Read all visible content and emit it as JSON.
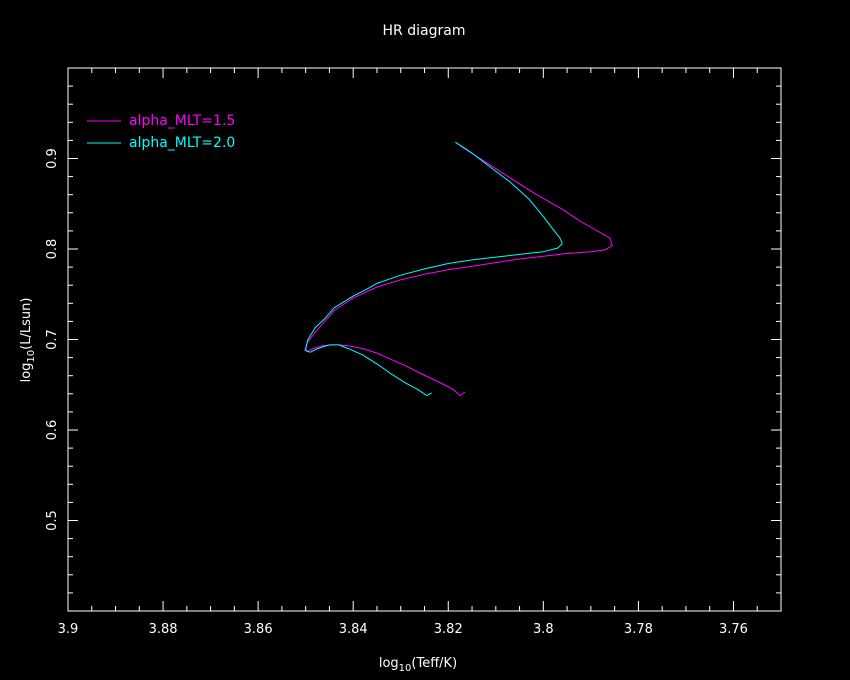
{
  "chart_data": {
    "type": "line",
    "title": "HR diagram",
    "xlabel": {
      "prefix": "log",
      "sub": "10",
      "suffix": "(Teff/K)"
    },
    "ylabel": {
      "prefix": "log",
      "sub": "10",
      "suffix": "(L/Lsun)"
    },
    "xlim": [
      3.9,
      3.75
    ],
    "ylim": [
      0.4,
      1.0
    ],
    "x_ticks": [
      3.9,
      3.88,
      3.86,
      3.84,
      3.82,
      3.8,
      3.78,
      3.76
    ],
    "x_tick_labels": [
      "3.9",
      "3.88",
      "3.86",
      "3.84",
      "3.82",
      "3.8",
      "3.78",
      "3.76"
    ],
    "y_ticks": [
      0.5,
      0.6,
      0.7,
      0.8,
      0.9
    ],
    "y_tick_labels": [
      "0.5",
      "0.6",
      "0.7",
      "0.8",
      "0.9"
    ],
    "grid": false,
    "legend_position": "top-left",
    "series": [
      {
        "name": "alpha_MLT=1.5",
        "color": "#ff00ff",
        "x": [
          3.8165,
          3.8175,
          3.819,
          3.822,
          3.826,
          3.829,
          3.832,
          3.835,
          3.838,
          3.841,
          3.843,
          3.8445,
          3.8465,
          3.8485,
          3.8495,
          3.8502,
          3.8496,
          3.848,
          3.846,
          3.844,
          3.84,
          3.835,
          3.83,
          3.825,
          3.82,
          3.815,
          3.81,
          3.805,
          3.8,
          3.795,
          3.79,
          3.787,
          3.7855,
          3.786,
          3.789,
          3.792,
          3.796,
          3.802,
          3.808,
          3.813,
          3.8175
        ],
        "y": [
          0.642,
          0.638,
          0.645,
          0.653,
          0.663,
          0.671,
          0.678,
          0.685,
          0.69,
          0.693,
          0.694,
          0.694,
          0.693,
          0.69,
          0.687,
          0.688,
          0.697,
          0.708,
          0.72,
          0.732,
          0.746,
          0.758,
          0.766,
          0.772,
          0.777,
          0.781,
          0.785,
          0.789,
          0.792,
          0.795,
          0.797,
          0.799,
          0.804,
          0.812,
          0.821,
          0.83,
          0.844,
          0.862,
          0.882,
          0.899,
          0.914
        ]
      },
      {
        "name": "alpha_MLT=2.0",
        "color": "#00ffff",
        "x": [
          3.8235,
          3.8245,
          3.8265,
          3.829,
          3.832,
          3.835,
          3.838,
          3.841,
          3.843,
          3.845,
          3.8475,
          3.849,
          3.8498,
          3.85,
          3.8495,
          3.848,
          3.846,
          3.844,
          3.84,
          3.837,
          3.835,
          3.83,
          3.825,
          3.82,
          3.815,
          3.81,
          3.805,
          3.8,
          3.797,
          3.796,
          3.7965,
          3.798,
          3.8,
          3.803,
          3.807,
          3.811,
          3.815,
          3.8185
        ],
        "y": [
          0.641,
          0.638,
          0.645,
          0.652,
          0.662,
          0.673,
          0.683,
          0.69,
          0.694,
          0.694,
          0.69,
          0.686,
          0.687,
          0.69,
          0.7,
          0.713,
          0.723,
          0.735,
          0.748,
          0.756,
          0.762,
          0.771,
          0.778,
          0.784,
          0.788,
          0.791,
          0.794,
          0.797,
          0.801,
          0.806,
          0.812,
          0.822,
          0.836,
          0.855,
          0.874,
          0.89,
          0.906,
          0.918
        ]
      }
    ]
  }
}
